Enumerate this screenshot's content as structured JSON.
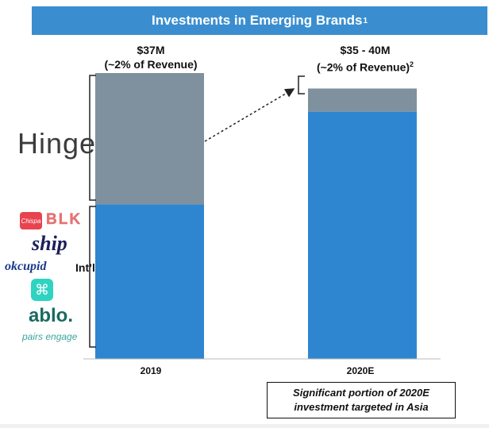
{
  "header": {
    "title": "Investments in Emerging Brands",
    "title_footnote": "1"
  },
  "chart_data": {
    "type": "bar",
    "stacked": true,
    "categories": [
      "2019",
      "2020E"
    ],
    "series": [
      {
        "values": [
          20,
          32
        ],
        "color": "#2e86d0"
      },
      {
        "values": [
          17,
          3
        ],
        "color": "#7f909e"
      }
    ],
    "data_labels": [
      {
        "line1": "$37M",
        "line2": "(~2% of Revenue)",
        "footnote": ""
      },
      {
        "line1": "$35 - 40M",
        "line2": "(~2% of Revenue)",
        "footnote": "2"
      }
    ],
    "ylim": [
      0,
      37
    ],
    "grid": false,
    "legend": "none"
  },
  "brands": {
    "hinge": "Hinge",
    "chispa": "Chispa",
    "blk": "BLK",
    "ship": "ship",
    "okcupid": "okcupid",
    "intl": "Int’l",
    "hinge_icon": "⌘",
    "ablo": "ablo.",
    "pairs": "pairs engage"
  },
  "note": {
    "line1": "Significant portion of 2020E",
    "line2": "investment targeted in Asia"
  },
  "colors": {
    "title_bar": "#3a8ecf",
    "bar_blue": "#2e86d0",
    "bar_gray": "#7f909e"
  }
}
